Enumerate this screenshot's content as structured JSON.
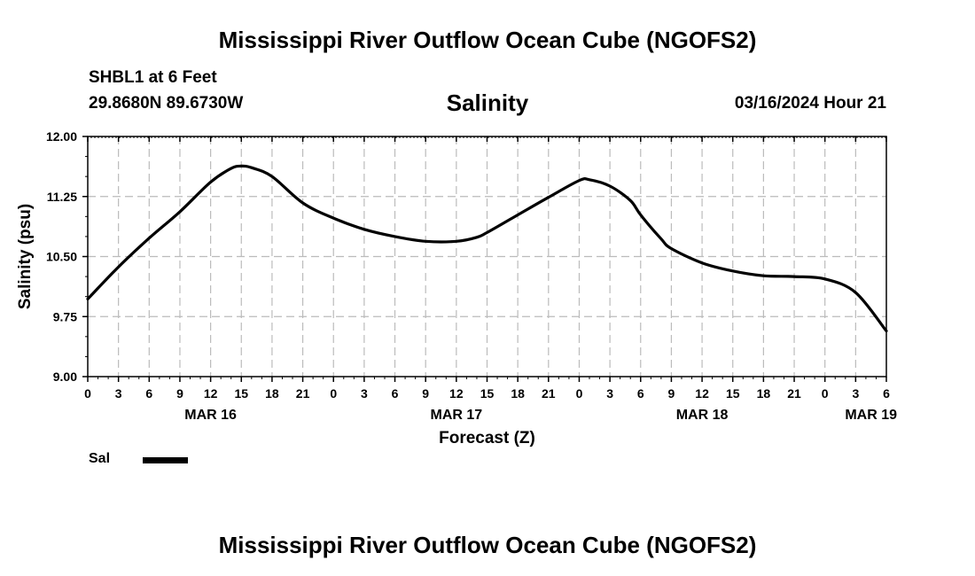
{
  "header": {
    "title": "Mississippi River Outflow Ocean Cube (NGOFS2)",
    "station": "SHBL1 at 6 Feet",
    "coords": "29.8680N  89.6730W",
    "variable": "Salinity",
    "run_time": "03/16/2024 Hour 21"
  },
  "footer": {
    "title": "Mississippi River Outflow Ocean Cube (NGOFS2)"
  },
  "legend": {
    "label": "Sal",
    "color": "#000000"
  },
  "chart_data": {
    "type": "line",
    "title": "Salinity",
    "xlabel": "Forecast (Z)",
    "ylabel": "Salinity (psu)",
    "ylim": [
      9.0,
      12.0
    ],
    "xlim": [
      0,
      78
    ],
    "x_units": "hours since MAR 16 00Z",
    "yticks": [
      "9.00",
      "9.75",
      "10.50",
      "11.25",
      "12.00"
    ],
    "ytick_values": [
      9.0,
      9.75,
      10.5,
      11.25,
      12.0
    ],
    "xtick_labels": [
      "0",
      "3",
      "6",
      "9",
      "12",
      "15",
      "18",
      "21",
      "0",
      "3",
      "6",
      "9",
      "12",
      "15",
      "18",
      "21",
      "0",
      "3",
      "6",
      "9",
      "12",
      "15",
      "18",
      "21",
      "0",
      "3",
      "6"
    ],
    "date_labels": [
      {
        "label": "MAR 16",
        "hour": 12
      },
      {
        "label": "MAR 17",
        "hour": 36
      },
      {
        "label": "MAR 18",
        "hour": 60
      },
      {
        "label": "MAR 19",
        "hour": 76.5
      }
    ],
    "grid": true,
    "series": [
      {
        "name": "Sal",
        "x": [
          0,
          3,
          6,
          9,
          12,
          14,
          15,
          16,
          18,
          21,
          24,
          27,
          30,
          33,
          36,
          38,
          39,
          42,
          45,
          48,
          49,
          51,
          53,
          54,
          56,
          57,
          60,
          63,
          66,
          69,
          72,
          75,
          78
        ],
        "values": [
          9.97,
          10.37,
          10.73,
          11.06,
          11.43,
          11.6,
          11.63,
          11.61,
          11.5,
          11.17,
          10.98,
          10.84,
          10.75,
          10.69,
          10.69,
          10.74,
          10.8,
          11.02,
          11.24,
          11.45,
          11.46,
          11.38,
          11.2,
          11.02,
          10.72,
          10.6,
          10.42,
          10.32,
          10.26,
          10.25,
          10.22,
          10.05,
          9.57
        ]
      }
    ]
  }
}
